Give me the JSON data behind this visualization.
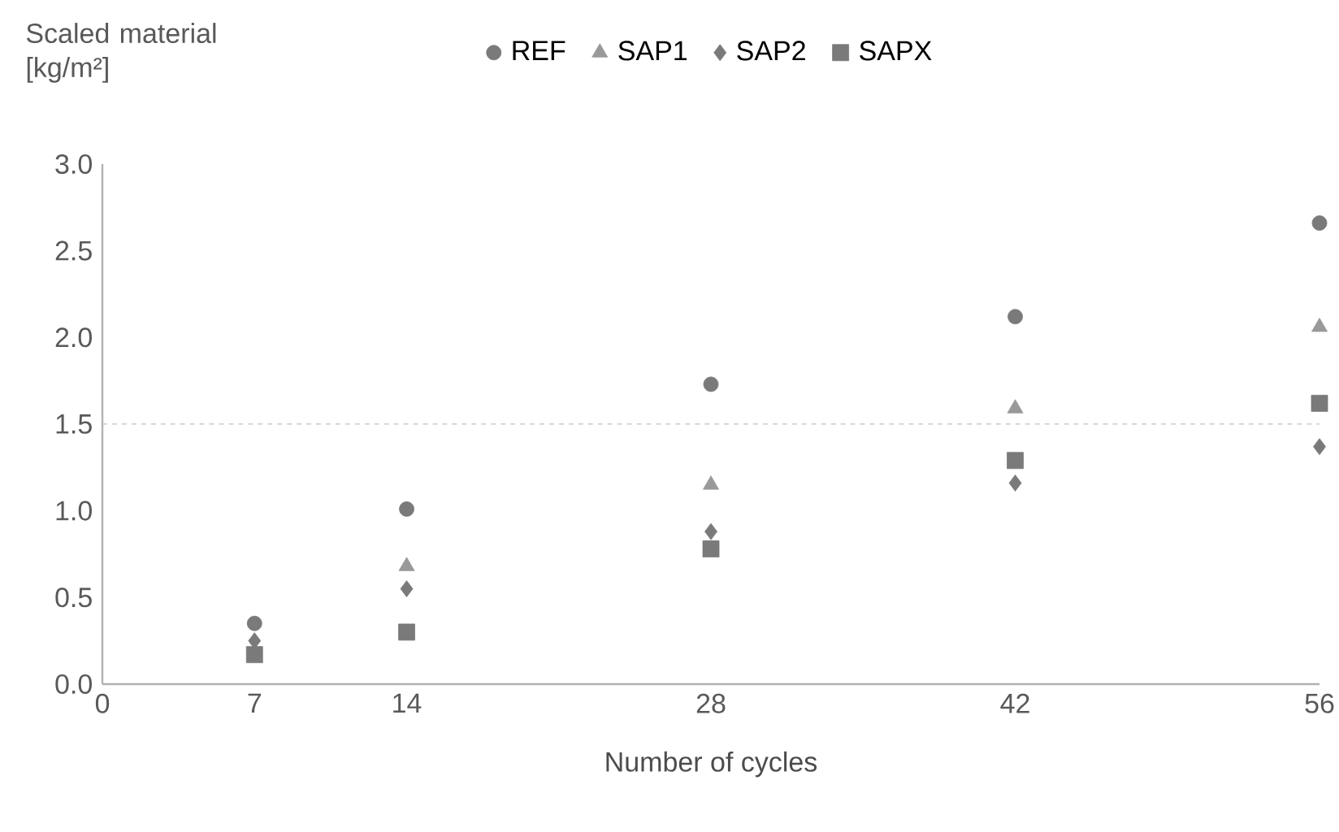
{
  "chart_data": {
    "type": "scatter",
    "ylabel": "Scaled material [kg/m²]",
    "xlabel": "Number of cycles",
    "x": [
      7,
      14,
      28,
      42,
      56
    ],
    "series": [
      {
        "name": "REF",
        "color": "#7a7a7a",
        "marker": "circle",
        "values": [
          0.35,
          1.01,
          1.73,
          2.12,
          2.66
        ]
      },
      {
        "name": "SAP1",
        "color": "#999999",
        "marker": "triangle",
        "values": [
          null,
          0.68,
          1.15,
          1.59,
          2.06
        ]
      },
      {
        "name": "SAP2",
        "color": "#7a7a7a",
        "marker": "diamond",
        "values": [
          0.25,
          0.55,
          0.88,
          1.16,
          1.37
        ]
      },
      {
        "name": "SAPX",
        "color": "#7a7a7a",
        "marker": "square",
        "values": [
          0.17,
          0.3,
          0.78,
          1.29,
          1.62
        ]
      }
    ],
    "xlim": [
      0,
      56
    ],
    "xticks": [
      0,
      7,
      14,
      28,
      42,
      56
    ],
    "ylim": [
      0,
      3.0
    ],
    "yticks": [
      {
        "value": 0,
        "label": "0.0"
      },
      {
        "value": 0.5,
        "label": "0.5"
      },
      {
        "value": 1,
        "label": "1.0"
      },
      {
        "value": 1.5,
        "label": "1.5"
      },
      {
        "value": 2,
        "label": "2.0"
      },
      {
        "value": 2.5,
        "label": "2.5"
      },
      {
        "value": 3,
        "label": "3.0"
      }
    ],
    "ref_lines": [
      {
        "axis": "y",
        "value": 1.5,
        "color": "#bfbfbf",
        "line_style": "dashed"
      }
    ],
    "legend": "top",
    "grid": false
  }
}
